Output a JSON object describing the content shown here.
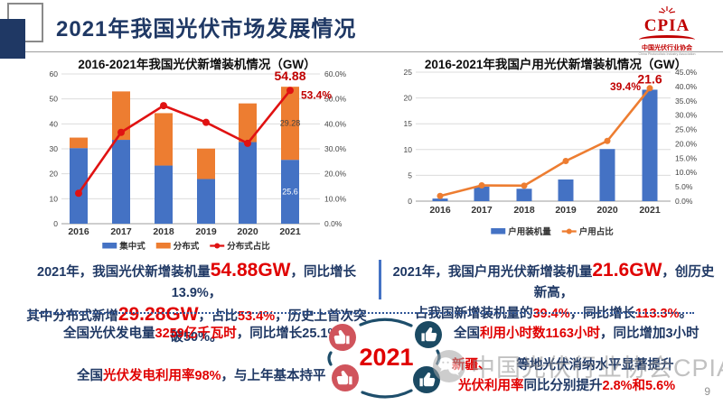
{
  "header": {
    "title": "2021年我国光伏市场发展情况",
    "logo": {
      "name": "CPIA",
      "org": "中国光伏行业协会",
      "org_en": "China Photovoltaic Industry Association"
    }
  },
  "chart_data": [
    {
      "type": "bar",
      "subtype": "stacked-bar-with-line",
      "title": "2016-2021年我国光伏新增装机情况（GW）",
      "categories": [
        "2016",
        "2017",
        "2018",
        "2019",
        "2020",
        "2021"
      ],
      "series": [
        {
          "name": "集中式",
          "kind": "bar",
          "color": "#4472C4",
          "values": [
            30.3,
            33.6,
            23.3,
            17.9,
            32.7,
            25.6
          ]
        },
        {
          "name": "分布式",
          "kind": "bar",
          "color": "#ED7D31",
          "values": [
            4.2,
            19.4,
            21.0,
            12.2,
            15.5,
            29.28
          ]
        },
        {
          "name": "分布式占比",
          "kind": "line",
          "axis": "right",
          "color": "#E01212",
          "values": [
            12.2,
            36.6,
            47.3,
            40.6,
            32.2,
            53.4
          ]
        }
      ],
      "left_axis": {
        "min": 0,
        "max": 60,
        "ticks": [
          "0",
          "10",
          "20",
          "30",
          "40",
          "50",
          "60"
        ]
      },
      "right_axis": {
        "min": 0,
        "max": 60,
        "ticks": [
          "0.0%",
          "10.0%",
          "20.0%",
          "30.0%",
          "40.0%",
          "50.0%",
          "60.0%"
        ]
      },
      "annotations": [
        {
          "text": "54.88",
          "anchor": "last-bar-top",
          "color": "#C00000",
          "size": 14,
          "bold": true
        },
        {
          "text": "53.4%",
          "anchor": "last-point-right",
          "color": "#C00000",
          "size": 12,
          "bold": true
        },
        {
          "text": "29.28",
          "anchor": "last-stack-seg-1",
          "color": "#404040",
          "size": 9,
          "bold": false
        },
        {
          "text": "25.6",
          "anchor": "last-stack-seg-0",
          "color": "#ffffff",
          "size": 9,
          "bold": false
        }
      ],
      "legend_position": "bottom",
      "grid": true
    },
    {
      "type": "bar",
      "subtype": "bar-with-line",
      "title": "2016-2021年我国户用光伏新增装机情况（GW）",
      "categories": [
        "2016",
        "2017",
        "2018",
        "2019",
        "2020",
        "2021"
      ],
      "series": [
        {
          "name": "户用装机量",
          "kind": "bar",
          "color": "#4472C4",
          "values": [
            0.5,
            2.8,
            2.4,
            4.2,
            10.1,
            21.6
          ]
        },
        {
          "name": "户用占比",
          "kind": "line",
          "axis": "right",
          "color": "#ED7D31",
          "values": [
            1.8,
            5.5,
            5.4,
            14.0,
            21.0,
            39.4
          ]
        }
      ],
      "left_axis": {
        "min": 0,
        "max": 25,
        "ticks": [
          "0",
          "5",
          "10",
          "15",
          "20",
          "25"
        ]
      },
      "right_axis": {
        "min": 0,
        "max": 45,
        "ticks": [
          "0.0%",
          "5.0%",
          "10.0%",
          "15.0%",
          "20.0%",
          "25.0%",
          "30.0%",
          "35.0%",
          "40.0%",
          "45.0%"
        ]
      },
      "annotations": [
        {
          "text": "21.6",
          "anchor": "last-bar-top",
          "color": "#C00000",
          "size": 14,
          "bold": true
        },
        {
          "text": "39.4%",
          "anchor": "last-point-left",
          "color": "#C00000",
          "size": 12,
          "bold": true
        }
      ],
      "legend_position": "bottom",
      "grid": true
    }
  ],
  "summaries": {
    "left": [
      [
        {
          "t": "2021年，我国光伏新增装机量"
        },
        {
          "t": "54.88GW",
          "red": true,
          "big": true
        },
        {
          "t": "，同比增长13.9%，"
        }
      ],
      [
        {
          "t": "其中分布式新增"
        },
        {
          "t": "29.28GW",
          "red": true,
          "big": true
        },
        {
          "t": "，占比"
        },
        {
          "t": "53.4%",
          "red": true
        },
        {
          "t": "，历史上首次突破50%。"
        }
      ]
    ],
    "right": [
      [
        {
          "t": "2021年，我国户用光伏新增装机量"
        },
        {
          "t": "21.6GW",
          "red": true,
          "big": true
        },
        {
          "t": "，创历史新高，"
        }
      ],
      [
        {
          "t": "占我国新增装机量的"
        },
        {
          "t": "39.4%",
          "red": true
        },
        {
          "t": "，同比增长"
        },
        {
          "t": "113.3%",
          "red": true
        },
        {
          "t": "。"
        }
      ]
    ]
  },
  "stats": {
    "left1": [
      {
        "t": "全国光伏发电量"
      },
      {
        "t": "3259亿千瓦时",
        "red": true
      },
      {
        "t": "，同比增长25.1%"
      }
    ],
    "left2": [
      {
        "t": "全国"
      },
      {
        "t": "光伏发电利用率98%",
        "red": true
      },
      {
        "t": "，与上年基本持平"
      }
    ],
    "right1": [
      {
        "t": "全国"
      },
      {
        "t": "利用小时数1163小时",
        "red": true
      },
      {
        "t": "，同比增加3小时"
      }
    ],
    "right2": [
      {
        "t": "新疆、",
        "red": true
      },
      {
        "t": "",
        "gap": true
      },
      {
        "t": "等地光伏消纳水平显著提升"
      }
    ],
    "right3": [
      {
        "t": "光伏利用率",
        "red": true
      },
      {
        "t": "同比分别提升"
      },
      {
        "t": "2.8%和5.6%",
        "red": true
      }
    ]
  },
  "badge": {
    "year": "2021"
  },
  "watermark": {
    "text": "中国光伏行业协会CPIA"
  },
  "page_number": "9",
  "colors": {
    "navy": "#1F3864",
    "red": "#E00000",
    "bar_blue": "#4472C4",
    "bar_orange": "#ED7D31",
    "line_red": "#E01212"
  }
}
